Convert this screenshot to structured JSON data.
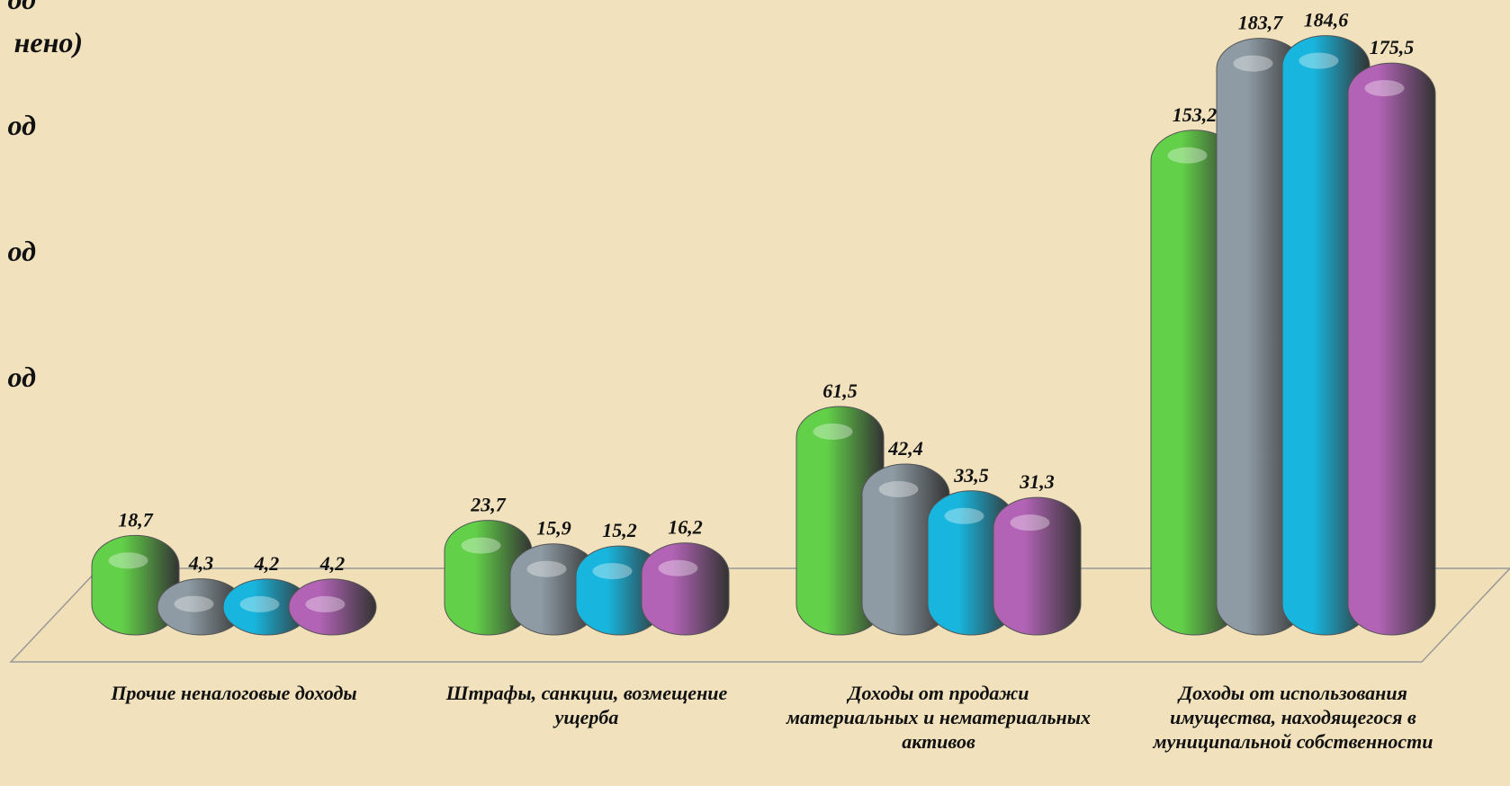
{
  "chart_data": {
    "type": "bar",
    "categories": [
      "Прочие неналоговые доходы",
      "Штрафы, санкции, возмещение ущерба",
      "Доходы от продажи материальных и нематериальных активов",
      "Доходы от использования имущества, находящегося в муниципальной собственности"
    ],
    "series": [
      {
        "name": [
          "од",
          "нено)"
        ],
        "color": "#62d048",
        "values": [
          18.7,
          23.7,
          61.5,
          153.2
        ],
        "value_labels": [
          "18,7",
          "23,7",
          "61,5",
          "153,2"
        ]
      },
      {
        "name": [
          "од"
        ],
        "color": "#8e9ba4",
        "values": [
          4.3,
          15.9,
          42.4,
          183.7
        ],
        "value_labels": [
          "4,3",
          "15,9",
          "42,4",
          "183,7"
        ]
      },
      {
        "name": [
          "од"
        ],
        "color": "#18b6de",
        "values": [
          4.2,
          15.2,
          33.5,
          184.6
        ],
        "value_labels": [
          "4,2",
          "15,2",
          "33,5",
          "184,6"
        ]
      },
      {
        "name": [
          "од"
        ],
        "color": "#b263b6",
        "values": [
          4.2,
          16.2,
          31.3,
          175.5
        ],
        "value_labels": [
          "4,2",
          "16,2",
          "31,3",
          "175,5"
        ]
      }
    ],
    "ylim": [
      0,
      190
    ]
  }
}
